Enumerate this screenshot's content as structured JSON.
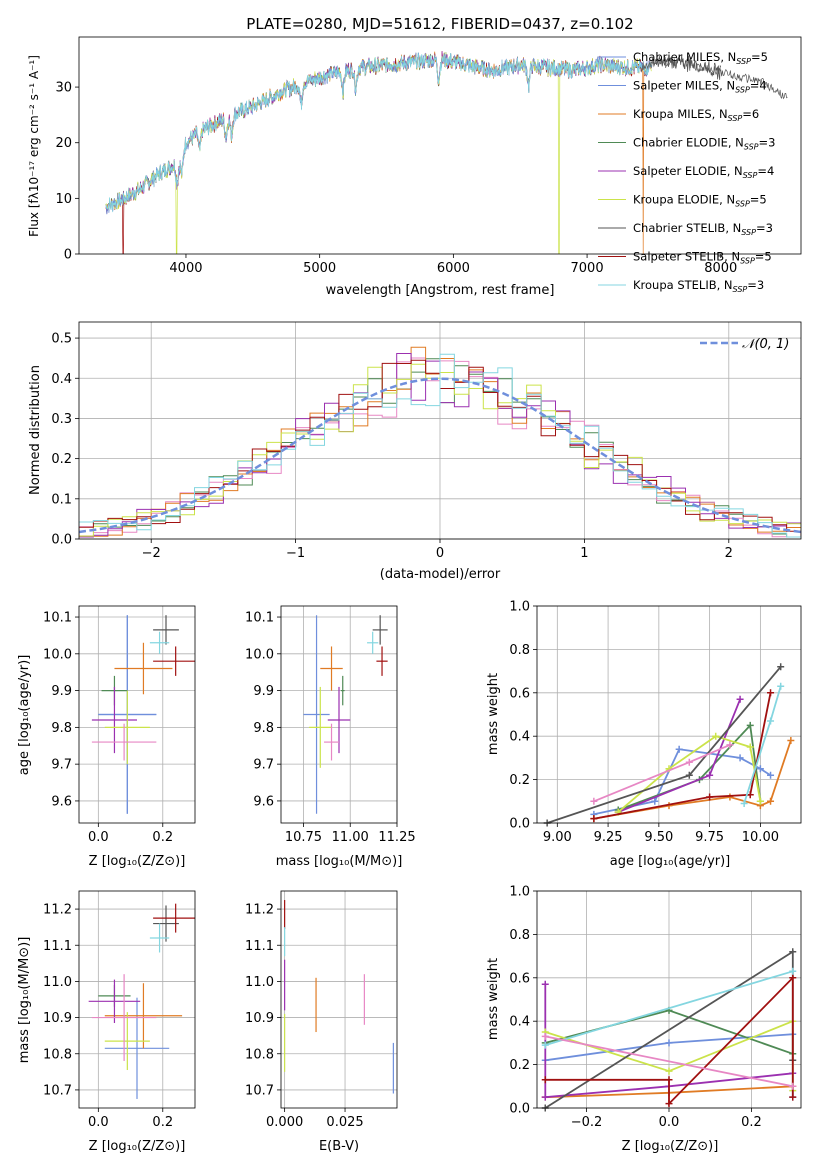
{
  "figure": {
    "title": "PLATE=0280, MJD=51612, FIBERID=0437, z=0.102"
  },
  "colors": {
    "Chabrier MILES": "#6f8fdc",
    "Salpeter MILES": "#6f8fdc",
    "Kroupa MILES": "#e07b24",
    "Chabrier ELODIE": "#4f8a55",
    "Salpeter ELODIE": "#9b30b0",
    "Kroupa ELODIE": "#cbe34a",
    "Chabrier STELIB": "#555555",
    "Salpeter STELIB": "#a01010",
    "Kroupa STELIB": "#84d6e0",
    "pink": "#e787c4"
  },
  "chart_data": [
    {
      "id": "spectrum",
      "type": "line",
      "title": "PLATE=0280, MJD=51612, FIBERID=0437, z=0.102",
      "xlabel": "wavelength [Angstrom, rest frame]",
      "ylabel": "Flux [fλ10⁻¹⁷ erg cm⁻² s⁻¹ A⁻¹]",
      "xlim": [
        3200,
        8600
      ],
      "ylim": [
        0,
        39
      ],
      "xticks": [
        "4000",
        "5000",
        "6000",
        "7000",
        "8000"
      ],
      "xtick_values": [
        4000,
        5000,
        6000,
        7000,
        8000
      ],
      "yticks": [
        "0",
        "10",
        "20",
        "30"
      ],
      "ytick_values": [
        0,
        10,
        20,
        30
      ],
      "grid": false,
      "legend_position": "top-right",
      "legend": [
        {
          "name": "Chabrier MILES",
          "nssp": "5"
        },
        {
          "name": "Salpeter MILES",
          "nssp": "4"
        },
        {
          "name": "Kroupa MILES",
          "nssp": "6"
        },
        {
          "name": "Chabrier ELODIE",
          "nssp": "3"
        },
        {
          "name": "Salpeter ELODIE",
          "nssp": "4"
        },
        {
          "name": "Kroupa ELODIE",
          "nssp": "5"
        },
        {
          "name": "Chabrier STELIB",
          "nssp": "3"
        },
        {
          "name": "Salpeter STELIB",
          "nssp": "5"
        },
        {
          "name": "Kroupa STELIB",
          "nssp": "3"
        }
      ],
      "continuum": {
        "x": [
          3400,
          3500,
          3650,
          3800,
          3950,
          4000,
          4100,
          4300,
          4500,
          4700,
          4900,
          5100,
          5300,
          5500,
          5700,
          5900,
          6100,
          6300,
          6500,
          6700,
          6900,
          7100,
          7300,
          7450,
          7500,
          7700,
          7900,
          8100,
          8300,
          8500
        ],
        "y": [
          8.5,
          9.5,
          11.5,
          14.5,
          16.5,
          20.0,
          22.0,
          24.5,
          26.5,
          29.0,
          31.0,
          32.5,
          33.5,
          34.0,
          34.5,
          35.0,
          34.0,
          33.0,
          34.0,
          33.5,
          33.0,
          34.0,
          33.5,
          33.5,
          34.5,
          34.5,
          33.5,
          32.0,
          31.0,
          28.0
        ]
      },
      "drops": [
        {
          "x": 3530,
          "series": "Salpeter STELIB"
        },
        {
          "x": 3930,
          "series": "Kroupa ELODIE"
        },
        {
          "x": 6790,
          "series": "Kroupa ELODIE"
        },
        {
          "x": 7420,
          "series": "Kroupa MILES"
        }
      ],
      "absorption_x": [
        3934,
        3969,
        4102,
        4300,
        4340,
        4861,
        5175,
        5270,
        5890,
        6563
      ]
    },
    {
      "id": "residuals",
      "type": "step",
      "xlabel": "(data-model)/error",
      "ylabel": "Normed distribution",
      "xlim": [
        -2.5,
        2.5
      ],
      "ylim": [
        0,
        0.54
      ],
      "xticks": [
        "−2",
        "−1",
        "0",
        "1",
        "2"
      ],
      "xtick_values": [
        -2,
        -1,
        0,
        1,
        2
      ],
      "yticks": [
        "0.0",
        "0.1",
        "0.2",
        "0.3",
        "0.4",
        "0.5"
      ],
      "ytick_values": [
        0,
        0.1,
        0.2,
        0.3,
        0.4,
        0.5
      ],
      "grid": true,
      "legend_position": "top-right",
      "reference_label": "𝒩(0, 1)",
      "bin_width": 0.1
    },
    {
      "id": "age-vs-z",
      "type": "errorbar",
      "xlabel": "Z [log₁₀(Z/Z⊙)]",
      "ylabel": "age  [log₁₀(age/yr)]",
      "xlim": [
        -0.06,
        0.3
      ],
      "ylim": [
        9.54,
        10.13
      ],
      "xticks": [
        "0.0",
        "0.2"
      ],
      "xtick_values": [
        0.0,
        0.2
      ],
      "yticks": [
        "9.6",
        "9.7",
        "9.8",
        "9.9",
        "10.0",
        "10.1"
      ],
      "ytick_values": [
        9.6,
        9.7,
        9.8,
        9.9,
        10.0,
        10.1
      ],
      "grid": true,
      "points": [
        {
          "series": "Chabrier MILES",
          "x": 0.09,
          "xerr": 0.09,
          "y": 9.835,
          "yerr": 0.27
        },
        {
          "series": "Salpeter MILES",
          "x": 0.09,
          "xerr": 0.09,
          "y": 9.835,
          "yerr": 0.27
        },
        {
          "series": "Kroupa MILES",
          "x": 0.14,
          "xerr": 0.09,
          "y": 9.96,
          "yerr": 0.07
        },
        {
          "series": "Chabrier ELODIE",
          "x": 0.05,
          "xerr": 0.04,
          "y": 9.9,
          "yerr": 0.04
        },
        {
          "series": "Salpeter ELODIE",
          "x": 0.05,
          "xerr": 0.07,
          "y": 9.82,
          "yerr": 0.09
        },
        {
          "series": "Kroupa ELODIE",
          "x": 0.09,
          "xerr": 0.07,
          "y": 9.8,
          "yerr": 0.1
        },
        {
          "series": "Chabrier STELIB",
          "x": 0.21,
          "xerr": 0.04,
          "y": 10.065,
          "yerr": 0.04
        },
        {
          "series": "Salpeter STELIB",
          "x": 0.24,
          "xerr": 0.07,
          "y": 9.98,
          "yerr": 0.04
        },
        {
          "series": "Kroupa STELIB",
          "x": 0.19,
          "xerr": 0.03,
          "y": 10.03,
          "yerr": 0.03
        },
        {
          "series": "pink",
          "x": 0.08,
          "xerr": 0.1,
          "y": 9.76,
          "yerr": 0.05
        }
      ]
    },
    {
      "id": "age-vs-mass",
      "type": "errorbar",
      "xlabel": "mass [log₁₀(M/M⊙)]",
      "ylabel": "",
      "xlim": [
        10.63,
        11.25
      ],
      "ylim": [
        9.54,
        10.13
      ],
      "xticks": [
        "10.75",
        "11.00",
        "11.25"
      ],
      "xtick_values": [
        10.75,
        11.0,
        11.25
      ],
      "yticks": [
        "9.6",
        "9.7",
        "9.8",
        "9.9",
        "10.0",
        "10.1"
      ],
      "ytick_values": [
        9.6,
        9.7,
        9.8,
        9.9,
        10.0,
        10.1
      ],
      "grid": true,
      "points": [
        {
          "series": "Chabrier MILES",
          "x": 10.82,
          "xerr": 0.07,
          "y": 9.835,
          "yerr": 0.27
        },
        {
          "series": "Kroupa MILES",
          "x": 10.9,
          "xerr": 0.06,
          "y": 9.96,
          "yerr": 0.06
        },
        {
          "series": "Chabrier ELODIE",
          "x": 10.96,
          "xerr": 0.01,
          "y": 9.9,
          "yerr": 0.04
        },
        {
          "series": "Salpeter ELODIE",
          "x": 10.94,
          "xerr": 0.06,
          "y": 9.82,
          "yerr": 0.09
        },
        {
          "series": "Kroupa ELODIE",
          "x": 10.84,
          "xerr": 0.06,
          "y": 9.8,
          "yerr": 0.11
        },
        {
          "series": "Chabrier STELIB",
          "x": 11.16,
          "xerr": 0.04,
          "y": 10.065,
          "yerr": 0.04
        },
        {
          "series": "Salpeter STELIB",
          "x": 11.17,
          "xerr": 0.03,
          "y": 9.98,
          "yerr": 0.04
        },
        {
          "series": "Kroupa STELIB",
          "x": 11.12,
          "xerr": 0.03,
          "y": 10.03,
          "yerr": 0.03
        },
        {
          "series": "pink",
          "x": 10.9,
          "xerr": 0.04,
          "y": 9.76,
          "yerr": 0.05
        }
      ]
    },
    {
      "id": "weight-vs-age",
      "type": "line",
      "xlabel": "age  [log₁₀(age/yr)]",
      "ylabel": "mass weight",
      "xlim": [
        8.9,
        10.2
      ],
      "ylim": [
        0,
        1
      ],
      "xticks": [
        "9.00",
        "9.25",
        "9.50",
        "9.75",
        "10.00"
      ],
      "xtick_values": [
        9.0,
        9.25,
        9.5,
        9.75,
        10.0
      ],
      "yticks": [
        "0.0",
        "0.2",
        "0.4",
        "0.6",
        "0.8",
        "1.0"
      ],
      "ytick_values": [
        0,
        0.2,
        0.4,
        0.6,
        0.8,
        1.0
      ],
      "grid": true,
      "series": [
        {
          "name": "Chabrier MILES",
          "x": [
            9.18,
            9.48,
            9.6,
            9.9,
            10.0,
            10.05
          ],
          "y": [
            0.04,
            0.1,
            0.34,
            0.3,
            0.25,
            0.22
          ]
        },
        {
          "name": "Kroupa MILES",
          "x": [
            9.18,
            9.55,
            9.85,
            10.0,
            10.05,
            10.15
          ],
          "y": [
            0.02,
            0.08,
            0.12,
            0.08,
            0.1,
            0.38
          ]
        },
        {
          "name": "Chabrier ELODIE",
          "x": [
            9.3,
            9.7,
            9.95,
            10.0
          ],
          "y": [
            0.06,
            0.2,
            0.45,
            0.1
          ]
        },
        {
          "name": "Salpeter ELODIE",
          "x": [
            9.3,
            9.75,
            9.9
          ],
          "y": [
            0.05,
            0.22,
            0.57
          ]
        },
        {
          "name": "Kroupa ELODIE",
          "x": [
            9.3,
            9.55,
            9.78,
            9.95,
            10.0
          ],
          "y": [
            0.05,
            0.25,
            0.4,
            0.35,
            0.1
          ]
        },
        {
          "name": "Chabrier STELIB",
          "x": [
            8.95,
            9.65,
            10.1
          ],
          "y": [
            0.0,
            0.22,
            0.72
          ]
        },
        {
          "name": "Salpeter STELIB",
          "x": [
            9.18,
            9.75,
            9.95,
            10.05
          ],
          "y": [
            0.02,
            0.12,
            0.13,
            0.6
          ]
        },
        {
          "name": "Kroupa STELIB",
          "x": [
            9.92,
            10.05,
            10.1
          ],
          "y": [
            0.09,
            0.47,
            0.63
          ]
        },
        {
          "name": "pink",
          "x": [
            9.18,
            9.65,
            9.85
          ],
          "y": [
            0.1,
            0.28,
            0.36
          ]
        }
      ]
    },
    {
      "id": "mass-vs-z",
      "type": "errorbar",
      "xlabel": "Z [log₁₀(Z/Z⊙)]",
      "ylabel": "mass [log₁₀(M/M⊙)]",
      "xlim": [
        -0.06,
        0.3
      ],
      "ylim": [
        10.65,
        11.25
      ],
      "xticks": [
        "0.0",
        "0.2"
      ],
      "xtick_values": [
        0.0,
        0.2
      ],
      "yticks": [
        "10.7",
        "10.8",
        "10.9",
        "11.0",
        "11.1",
        "11.2"
      ],
      "ytick_values": [
        10.7,
        10.8,
        10.9,
        11.0,
        11.1,
        11.2
      ],
      "grid": true,
      "points": [
        {
          "series": "Chabrier MILES",
          "x": 0.12,
          "xerr": 0.1,
          "y": 10.815,
          "yerr": 0.14
        },
        {
          "series": "Kroupa MILES",
          "x": 0.14,
          "xerr": 0.12,
          "y": 10.905,
          "yerr": 0.09
        },
        {
          "series": "Chabrier ELODIE",
          "x": 0.05,
          "xerr": 0.05,
          "y": 10.96,
          "yerr": 0.03
        },
        {
          "series": "Salpeter ELODIE",
          "x": 0.05,
          "xerr": 0.08,
          "y": 10.945,
          "yerr": 0.06
        },
        {
          "series": "Kroupa ELODIE",
          "x": 0.09,
          "xerr": 0.07,
          "y": 10.835,
          "yerr": 0.08
        },
        {
          "series": "Chabrier STELIB",
          "x": 0.21,
          "xerr": 0.04,
          "y": 11.16,
          "yerr": 0.05
        },
        {
          "series": "Salpeter STELIB",
          "x": 0.24,
          "xerr": 0.07,
          "y": 11.175,
          "yerr": 0.04
        },
        {
          "series": "Kroupa STELIB",
          "x": 0.19,
          "xerr": 0.03,
          "y": 11.12,
          "yerr": 0.04
        },
        {
          "series": "pink",
          "x": 0.08,
          "xerr": 0.1,
          "y": 10.9,
          "yerr": 0.12
        }
      ]
    },
    {
      "id": "mass-vs-ebv",
      "type": "errorbar",
      "xlabel": "E(B-V)",
      "ylabel": "",
      "xlim": [
        -0.0015,
        0.0465
      ],
      "ylim": [
        10.65,
        11.25
      ],
      "xticks": [
        "0.000",
        "0.025"
      ],
      "xtick_values": [
        0.0,
        0.025
      ],
      "yticks": [
        "10.7",
        "10.8",
        "10.9",
        "11.0",
        "11.1",
        "11.2"
      ],
      "ytick_values": [
        10.7,
        10.8,
        10.9,
        11.0,
        11.1,
        11.2
      ],
      "grid": true,
      "points": [
        {
          "series": "Chabrier MILES",
          "x": 0.045,
          "xerr": 0,
          "y": 10.76,
          "yerr": 0.07
        },
        {
          "series": "Kroupa MILES",
          "x": 0.013,
          "xerr": 0,
          "y": 10.935,
          "yerr": 0.075
        },
        {
          "series": "Salpeter ELODIE",
          "x": 0.0,
          "xerr": 0,
          "y": 10.99,
          "yerr": 0.07
        },
        {
          "series": "Kroupa ELODIE",
          "x": 0.0,
          "xerr": 0,
          "y": 10.83,
          "yerr": 0.08
        },
        {
          "series": "Salpeter STELIB",
          "x": 0.0,
          "xerr": 0,
          "y": 11.185,
          "yerr": 0.04
        },
        {
          "series": "Kroupa STELIB",
          "x": 0.0,
          "xerr": 0,
          "y": 11.11,
          "yerr": 0.04
        },
        {
          "series": "pink",
          "x": 0.033,
          "xerr": 0,
          "y": 10.95,
          "yerr": 0.07
        }
      ]
    },
    {
      "id": "weight-vs-z",
      "type": "line",
      "xlabel": "Z [log₁₀(Z/Z⊙)]",
      "ylabel": "mass weight",
      "xlim": [
        -0.32,
        0.32
      ],
      "ylim": [
        0,
        1
      ],
      "xticks": [
        "−0.2",
        "0.0",
        "0.2"
      ],
      "xtick_values": [
        -0.2,
        0.0,
        0.2
      ],
      "yticks": [
        "0.0",
        "0.2",
        "0.4",
        "0.6",
        "0.8",
        "1.0"
      ],
      "ytick_values": [
        0,
        0.2,
        0.4,
        0.6,
        0.8,
        1.0
      ],
      "grid": true,
      "series": [
        {
          "name": "Chabrier MILES",
          "x": [
            -0.3,
            0.0,
            0.3,
            0.3
          ],
          "y": [
            0.22,
            0.3,
            0.34,
            0.05
          ]
        },
        {
          "name": "Kroupa MILES",
          "x": [
            -0.3,
            0.0,
            0.3
          ],
          "y": [
            0.05,
            0.07,
            0.1
          ]
        },
        {
          "name": "Chabrier ELODIE",
          "x": [
            -0.3,
            0.0,
            0.3
          ],
          "y": [
            0.3,
            0.45,
            0.25
          ]
        },
        {
          "name": "Salpeter ELODIE",
          "x": [
            -0.3,
            -0.3,
            0.0,
            0.3
          ],
          "y": [
            0.57,
            0.05,
            0.1,
            0.16
          ]
        },
        {
          "name": "Kroupa ELODIE",
          "x": [
            -0.3,
            0.0,
            0.3,
            0.3
          ],
          "y": [
            0.35,
            0.17,
            0.4,
            0.08
          ]
        },
        {
          "name": "Chabrier STELIB",
          "x": [
            -0.3,
            0.3,
            0.3
          ],
          "y": [
            0.0,
            0.72,
            0.22
          ]
        },
        {
          "name": "Salpeter STELIB",
          "x": [
            -0.3,
            0.0,
            0.0,
            0.3,
            0.3
          ],
          "y": [
            0.13,
            0.13,
            0.02,
            0.6,
            0.05
          ]
        },
        {
          "name": "Kroupa STELIB",
          "x": [
            -0.3,
            0.3
          ],
          "y": [
            0.29,
            0.63
          ]
        },
        {
          "name": "pink",
          "x": [
            -0.3,
            0.3
          ],
          "y": [
            0.33,
            0.1
          ]
        }
      ]
    }
  ]
}
